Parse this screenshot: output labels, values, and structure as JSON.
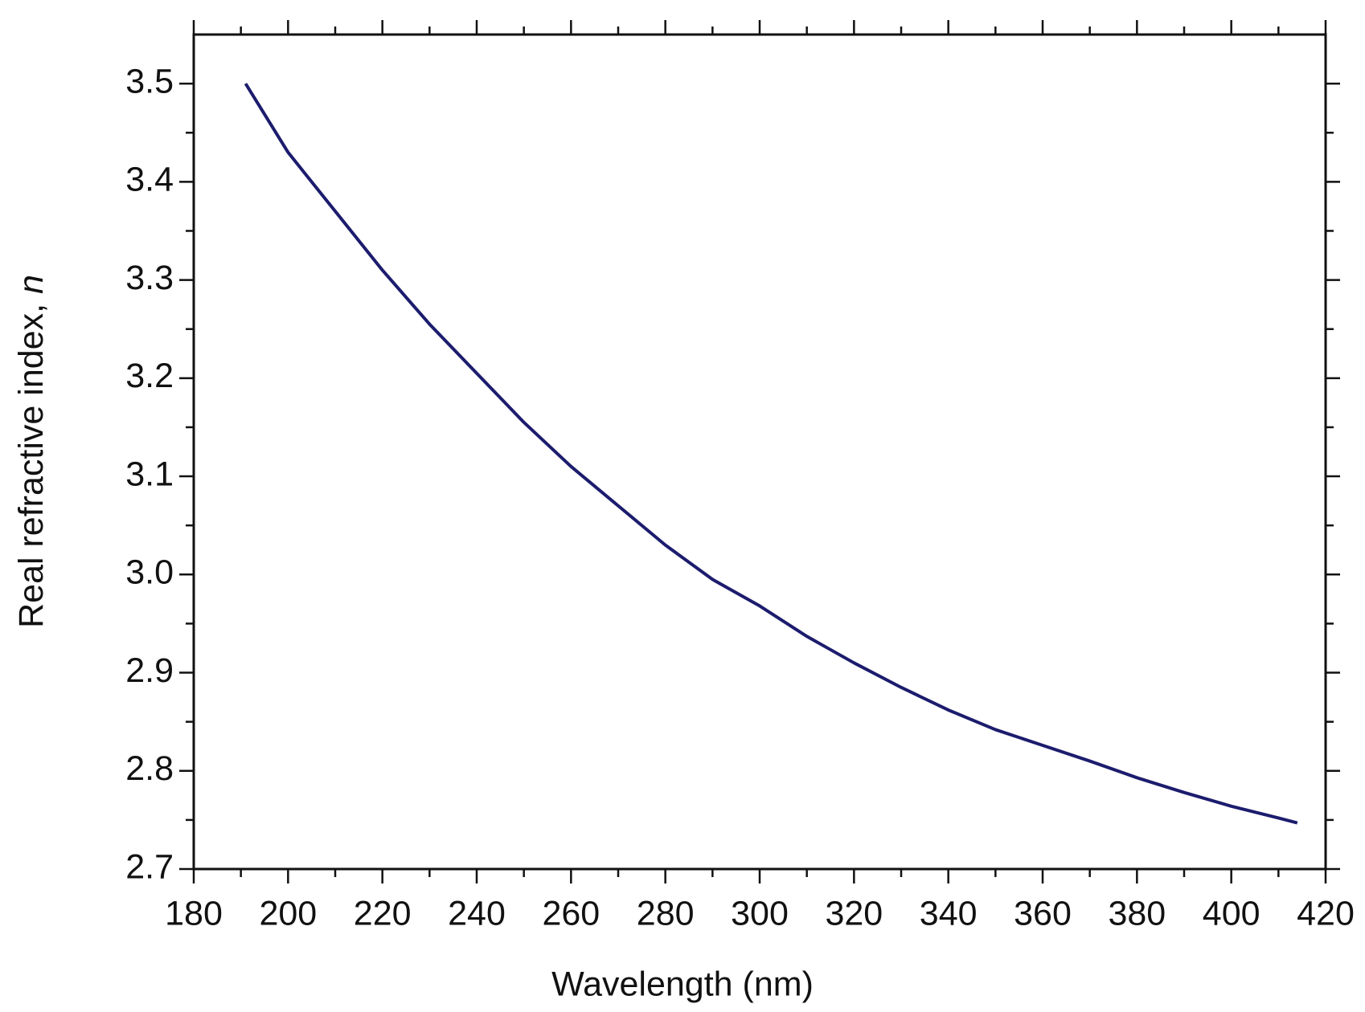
{
  "chart_data": {
    "type": "line",
    "xlabel": "Wavelength (nm)",
    "ylabel": "Real refractive index,",
    "ylabel_symbol": "n",
    "x": [
      191,
      200,
      210,
      220,
      230,
      240,
      250,
      260,
      270,
      280,
      290,
      300,
      310,
      320,
      330,
      340,
      350,
      360,
      370,
      380,
      390,
      400,
      410,
      414
    ],
    "values": [
      3.5,
      3.43,
      3.37,
      3.31,
      3.255,
      3.205,
      3.155,
      3.11,
      3.07,
      3.03,
      2.995,
      2.968,
      2.937,
      2.91,
      2.885,
      2.862,
      2.842,
      2.826,
      2.81,
      2.793,
      2.778,
      2.764,
      2.752,
      2.747
    ],
    "color": "#1c1c6e",
    "xlim": [
      180,
      420
    ],
    "ylim": [
      2.7,
      3.55
    ],
    "xticks": [
      180,
      200,
      220,
      240,
      260,
      280,
      300,
      320,
      340,
      360,
      380,
      400,
      420
    ],
    "xticks_minor": [
      190,
      210,
      230,
      250,
      270,
      290,
      310,
      330,
      350,
      370,
      390,
      410
    ],
    "yticks": [
      2.7,
      2.8,
      2.9,
      {
        "value": 3,
        "label": "3.0"
      },
      3.1,
      3.2,
      3.3,
      3.4,
      3.5
    ],
    "yticks_minor": [
      2.75,
      2.85,
      2.95,
      3.05,
      3.15,
      3.25,
      3.35,
      3.45
    ]
  }
}
